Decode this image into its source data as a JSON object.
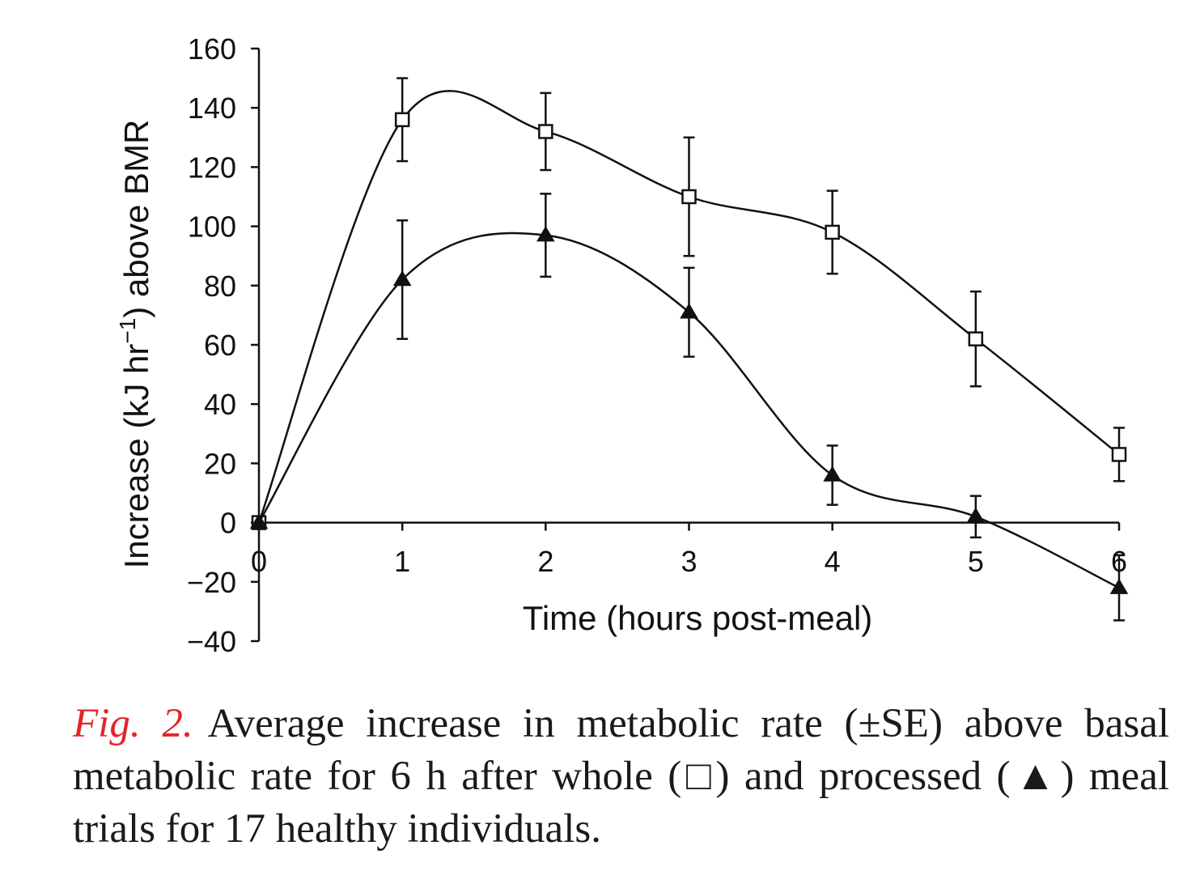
{
  "chart_data": {
    "type": "line",
    "title": "",
    "xlabel": "Time (hours post-meal)",
    "ylabel_main": "Increase (kJ hr",
    "ylabel_sup": "−1",
    "ylabel_tail": ") above BMR",
    "xlim": [
      0,
      6
    ],
    "ylim": [
      -40,
      160
    ],
    "x_ticks": [
      "0",
      "1",
      "2",
      "3",
      "4",
      "5",
      "6"
    ],
    "y_ticks": [
      "160",
      "140",
      "120",
      "100",
      "80",
      "60",
      "40",
      "20",
      "0",
      "−20",
      "−40"
    ],
    "grid": false,
    "legend": "none",
    "x": [
      0,
      1,
      2,
      3,
      4,
      5,
      6
    ],
    "series": [
      {
        "name": "whole",
        "marker": "open-square",
        "values": [
          0,
          136,
          132,
          110,
          98,
          62,
          23
        ],
        "se": [
          0,
          14,
          13,
          20,
          14,
          16,
          9
        ]
      },
      {
        "name": "processed",
        "marker": "filled-triangle",
        "values": [
          0,
          82,
          97,
          71,
          16,
          2,
          -22
        ],
        "se": [
          0,
          20,
          14,
          15,
          10,
          7,
          11
        ]
      }
    ]
  },
  "caption": {
    "label": "Fig. 2.",
    "text": "Average increase in metabolic rate (±SE) above basal metabolic rate for 6 h after whole (□) and processed (▲) meal trials for 17 healthy individuals."
  }
}
